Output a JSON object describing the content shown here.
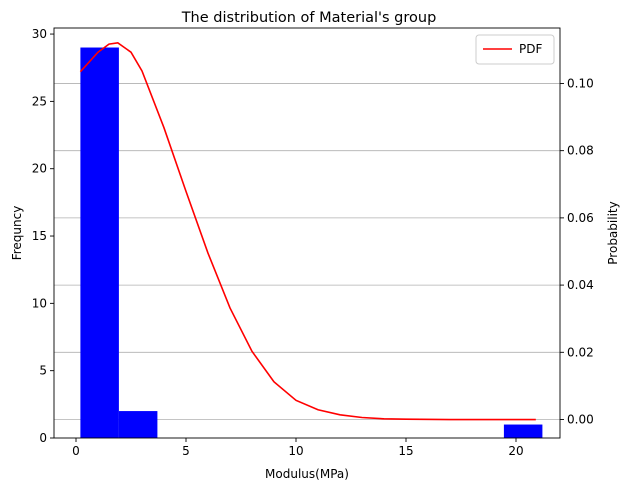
{
  "chart_data": {
    "type": "bar",
    "title": "The distribution of Material's group",
    "xlabel": "Modulus(MPa)",
    "ylabel": "Frequncy",
    "y2label": "Probability",
    "xlim": [
      -1.0,
      22.0
    ],
    "ylim": [
      0,
      30.45
    ],
    "y2lim": [
      -0.0055,
      0.1165
    ],
    "x_ticks": [
      0,
      5,
      10,
      15,
      20
    ],
    "y_ticks": [
      0,
      5,
      10,
      15,
      20,
      25,
      30
    ],
    "y2_ticks": [
      0.0,
      0.02,
      0.04,
      0.06,
      0.08,
      0.1
    ],
    "y2_tick_labels": [
      "0.00",
      "0.02",
      "0.04",
      "0.06",
      "0.08",
      "0.10"
    ],
    "grid": "horizontal lines at right axis ticks",
    "legend_position": "top-right",
    "histogram": {
      "name": "",
      "color": "#0000ff",
      "bins": [
        {
          "x0": 0.2,
          "x1": 1.95,
          "count": 29
        },
        {
          "x0": 1.95,
          "x1": 3.7,
          "count": 2
        },
        {
          "x0": 3.7,
          "x1": 5.45,
          "count": 0
        },
        {
          "x0": 5.45,
          "x1": 7.2,
          "count": 0
        },
        {
          "x0": 7.2,
          "x1": 8.95,
          "count": 0
        },
        {
          "x0": 8.95,
          "x1": 10.7,
          "count": 0
        },
        {
          "x0": 10.7,
          "x1": 12.45,
          "count": 0
        },
        {
          "x0": 12.45,
          "x1": 14.2,
          "count": 0
        },
        {
          "x0": 14.2,
          "x1": 15.95,
          "count": 0
        },
        {
          "x0": 15.95,
          "x1": 17.7,
          "count": 0
        },
        {
          "x0": 17.7,
          "x1": 19.45,
          "count": 0
        },
        {
          "x0": 19.45,
          "x1": 21.2,
          "count": 1
        }
      ]
    },
    "pdf": {
      "name": "PDF",
      "color": "#ff0000",
      "points": [
        [
          0.2,
          0.1035
        ],
        [
          1.0,
          0.1093
        ],
        [
          1.5,
          0.1117
        ],
        [
          1.9,
          0.1121
        ],
        [
          2.5,
          0.1093
        ],
        [
          3.0,
          0.1037
        ],
        [
          4.0,
          0.0868
        ],
        [
          5.0,
          0.0679
        ],
        [
          6.0,
          0.0495
        ],
        [
          7.0,
          0.0332
        ],
        [
          8.0,
          0.0203
        ],
        [
          9.0,
          0.0112
        ],
        [
          10.0,
          0.0057
        ],
        [
          11.0,
          0.0029
        ],
        [
          12.0,
          0.0014
        ],
        [
          13.0,
          0.0006
        ],
        [
          14.0,
          0.0002
        ],
        [
          15.0,
          0.0001
        ],
        [
          17.0,
          0.0
        ],
        [
          19.0,
          0.0
        ],
        [
          20.9,
          0.0
        ]
      ]
    }
  }
}
